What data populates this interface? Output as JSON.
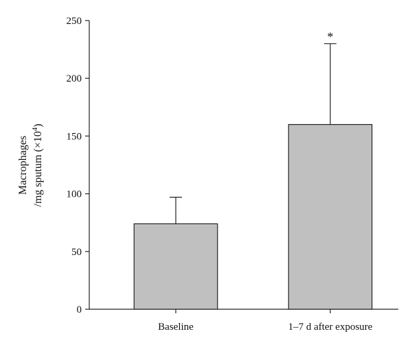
{
  "chart_data": {
    "type": "bar",
    "categories": [
      "Baseline",
      "1–7 d after exposure"
    ],
    "values": [
      74,
      160
    ],
    "error_upper": [
      97,
      230
    ],
    "annotations": [
      "",
      "*"
    ],
    "ylabel_line1": "Macrophages",
    "ylabel_line2_prefix": "/mg sputum (×10",
    "ylabel_line2_exponent": "4",
    "ylabel_line2_suffix": ")",
    "ylim": [
      0,
      250
    ],
    "yticks": [
      "0",
      "50",
      "100",
      "150",
      "200",
      "250"
    ],
    "grid": false,
    "legend": "none",
    "colors": {
      "bar_fill": "#c0c0c0",
      "bar_stroke": "#222222",
      "axis": "#222222"
    }
  }
}
